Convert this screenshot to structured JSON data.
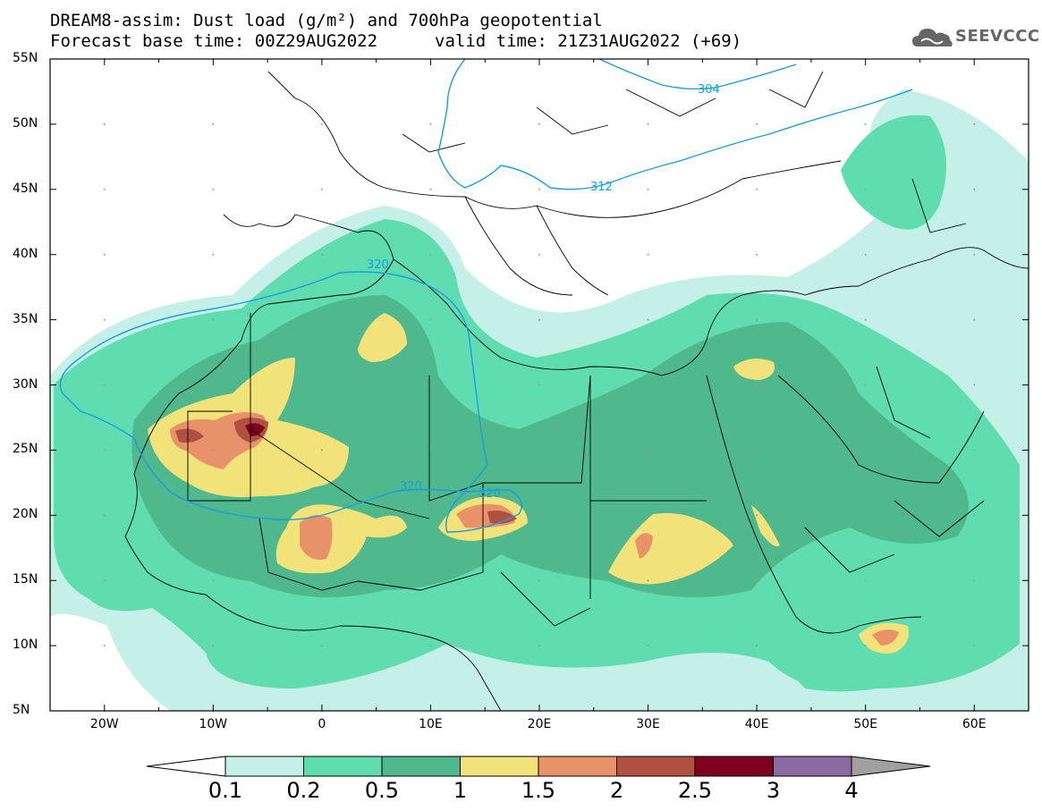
{
  "title_line1": "DREAM8-assim: Dust load (g/m²) and 700hPa geopotential",
  "title_line2_base": "Forecast base time: 00Z29AUG2022",
  "title_line2_valid": "valid time: 21Z31AUG2022 (+69)",
  "logo_text": "SEEVCCC",
  "lat_labels": [
    "55N",
    "50N",
    "45N",
    "40N",
    "35N",
    "30N",
    "25N",
    "20N",
    "15N",
    "10N",
    "5N"
  ],
  "lon_labels": [
    "20W",
    "10W",
    "0",
    "10E",
    "20E",
    "30E",
    "40E",
    "50E",
    "60E"
  ],
  "contour_labels": [
    "304",
    "312",
    "320",
    "320",
    "320"
  ],
  "colorbar": {
    "levels": [
      "0.1",
      "0.2",
      "0.5",
      "1",
      "1.5",
      "2",
      "2.5",
      "3",
      "4"
    ],
    "colors": [
      "#c5f0e8",
      "#5fdcb0",
      "#4fb88c",
      "#f2e27a",
      "#e8926a",
      "#b05040",
      "#800020",
      "#8a6aa0"
    ],
    "low_color": "#ffffff",
    "high_color": "#a0a0a0"
  },
  "colors": {
    "contour": "#1a9ee0",
    "border": "#000000"
  }
}
